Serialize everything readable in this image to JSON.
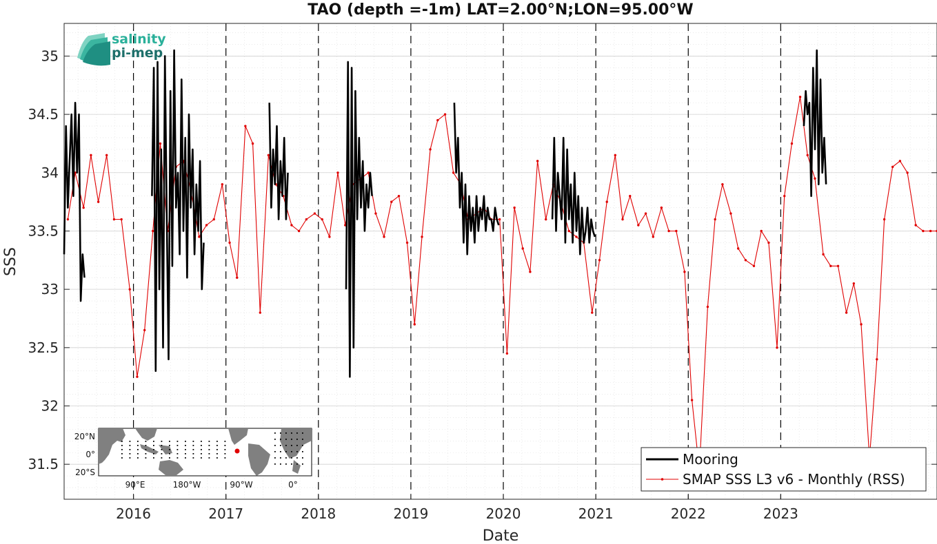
{
  "chart_data": {
    "type": "line",
    "title": "TAO (depth =-1m) LAT=2.00°N;LON=95.00°W",
    "xlabel": "Date",
    "ylabel": "SSS",
    "xlim": [
      2015.25,
      2024.69
    ],
    "ylim": [
      31.2,
      35.28
    ],
    "x_ticks": [
      2016,
      2017,
      2018,
      2019,
      2020,
      2021,
      2022,
      2023
    ],
    "x_tick_labels": [
      "2016",
      "2017",
      "2018",
      "2019",
      "2020",
      "2021",
      "2022",
      "2023"
    ],
    "y_ticks": [
      31.5,
      32,
      32.5,
      33,
      33.5,
      34,
      34.5,
      35
    ],
    "y_tick_labels": [
      "31.5",
      "32",
      "32.5",
      "33",
      "33.5",
      "34",
      "34.5",
      "35"
    ],
    "vertical_dashed_lines": [
      2016,
      2017,
      2018,
      2019,
      2020,
      2021,
      2022,
      2023
    ],
    "grid": "on (minor dotted)",
    "legend_location": "bottom-right",
    "series": [
      {
        "name": "Mooring",
        "color": "#000000",
        "style": "thick line",
        "x": [
          2015.25,
          2015.27,
          2015.29,
          2015.31,
          2015.33,
          2015.35,
          2015.37,
          2015.39,
          2015.41,
          2015.43,
          2015.45,
          2015.47,
          2016.2,
          2016.22,
          2016.24,
          2016.26,
          2016.28,
          2016.3,
          2016.32,
          2016.34,
          2016.36,
          2016.38,
          2016.4,
          2016.42,
          2016.44,
          2016.46,
          2016.48,
          2016.5,
          2016.52,
          2016.54,
          2016.56,
          2016.58,
          2016.6,
          2016.62,
          2016.64,
          2016.66,
          2016.68,
          2016.7,
          2016.72,
          2016.74,
          2016.76,
          2017.47,
          2017.49,
          2017.51,
          2017.53,
          2017.55,
          2017.57,
          2017.59,
          2017.61,
          2017.63,
          2017.65,
          2017.67,
          2018.3,
          2018.32,
          2018.34,
          2018.36,
          2018.38,
          2018.4,
          2018.42,
          2018.44,
          2018.46,
          2018.48,
          2018.5,
          2018.52,
          2018.54,
          2018.56,
          2018.58,
          2019.47,
          2019.49,
          2019.51,
          2019.53,
          2019.55,
          2019.57,
          2019.59,
          2019.61,
          2019.63,
          2019.65,
          2019.67,
          2019.69,
          2019.71,
          2019.73,
          2019.75,
          2019.77,
          2019.79,
          2019.81,
          2019.83,
          2019.85,
          2019.87,
          2019.89,
          2019.91,
          2019.93,
          2019.95,
          2020.53,
          2020.55,
          2020.57,
          2020.59,
          2020.61,
          2020.63,
          2020.65,
          2020.67,
          2020.69,
          2020.71,
          2020.73,
          2020.75,
          2020.77,
          2020.79,
          2020.81,
          2020.83,
          2020.85,
          2020.87,
          2020.89,
          2020.91,
          2020.93,
          2020.95,
          2020.97,
          2020.99,
          2023.25,
          2023.27,
          2023.29,
          2023.31,
          2023.33,
          2023.35,
          2023.37,
          2023.39,
          2023.41,
          2023.43,
          2023.45,
          2023.47,
          2023.49
        ],
        "values": [
          33.3,
          34.4,
          33.7,
          34.1,
          34.5,
          33.8,
          34.6,
          34.0,
          34.5,
          32.9,
          33.3,
          33.1,
          33.8,
          34.9,
          32.3,
          34.95,
          33.0,
          34.2,
          32.5,
          35.0,
          33.6,
          32.4,
          34.7,
          33.2,
          35.05,
          33.7,
          34.0,
          33.3,
          34.8,
          33.5,
          34.3,
          33.1,
          34.5,
          33.7,
          34.2,
          33.3,
          33.9,
          33.5,
          34.1,
          33.0,
          33.4,
          34.6,
          33.7,
          34.2,
          33.9,
          34.4,
          33.6,
          34.1,
          33.8,
          34.3,
          33.6,
          34.0,
          33.0,
          34.95,
          32.25,
          34.9,
          32.5,
          34.7,
          33.6,
          34.3,
          33.7,
          34.1,
          33.5,
          33.9,
          33.7,
          34.0,
          33.8,
          34.6,
          34.0,
          34.3,
          33.7,
          34.0,
          33.4,
          33.9,
          33.3,
          33.8,
          33.5,
          33.7,
          33.4,
          33.8,
          33.5,
          33.7,
          33.6,
          33.8,
          33.5,
          33.7,
          33.6,
          33.6,
          33.5,
          33.7,
          33.6,
          33.55,
          33.6,
          34.3,
          33.5,
          34.0,
          33.8,
          33.6,
          34.3,
          33.4,
          34.2,
          33.6,
          33.9,
          33.4,
          34.0,
          33.5,
          33.8,
          33.3,
          33.7,
          33.4,
          33.5,
          33.7,
          33.4,
          33.6,
          33.5,
          33.45,
          34.4,
          34.7,
          34.5,
          34.6,
          33.8,
          34.9,
          34.2,
          35.05,
          33.9,
          34.8,
          34.0,
          34.3,
          33.9
        ]
      },
      {
        "name": "SMAP SSS L3 v6 - Monthly (RSS)",
        "color": "#e00000",
        "style": "thin line with dot markers",
        "x": [
          2015.29,
          2015.37,
          2015.46,
          2015.54,
          2015.62,
          2015.71,
          2015.79,
          2015.87,
          2015.96,
          2016.04,
          2016.12,
          2016.21,
          2016.29,
          2016.37,
          2016.46,
          2016.54,
          2016.62,
          2016.71,
          2016.79,
          2016.87,
          2016.96,
          2017.04,
          2017.12,
          2017.21,
          2017.29,
          2017.37,
          2017.46,
          2017.54,
          2017.62,
          2017.71,
          2017.79,
          2017.87,
          2017.96,
          2018.04,
          2018.12,
          2018.21,
          2018.29,
          2018.37,
          2018.46,
          2018.54,
          2018.62,
          2018.71,
          2018.79,
          2018.87,
          2018.96,
          2019.04,
          2019.12,
          2019.21,
          2019.29,
          2019.37,
          2019.46,
          2019.54,
          2019.62,
          2019.71,
          2019.79,
          2019.87,
          2019.96,
          2020.04,
          2020.12,
          2020.21,
          2020.29,
          2020.37,
          2020.46,
          2020.54,
          2020.62,
          2020.71,
          2020.79,
          2020.87,
          2020.96,
          2021.04,
          2021.12,
          2021.21,
          2021.29,
          2021.37,
          2021.46,
          2021.54,
          2021.62,
          2021.71,
          2021.79,
          2021.87,
          2021.96,
          2022.04,
          2022.12,
          2022.21,
          2022.29,
          2022.37,
          2022.46,
          2022.54,
          2022.62,
          2022.71,
          2022.79,
          2022.87,
          2022.96,
          2023.04,
          2023.12,
          2023.21,
          2023.29,
          2023.37,
          2023.46,
          2023.54,
          2023.62,
          2023.71,
          2023.79,
          2023.87,
          2023.96,
          2024.04,
          2024.12,
          2024.21,
          2024.29,
          2024.37,
          2024.46,
          2024.54,
          2024.62,
          2024.69
        ],
        "values": [
          33.6,
          34.0,
          33.7,
          34.15,
          33.75,
          34.15,
          33.6,
          33.6,
          33.0,
          32.25,
          32.65,
          33.5,
          34.25,
          33.5,
          34.05,
          34.1,
          33.85,
          33.45,
          33.55,
          33.6,
          33.9,
          33.4,
          33.1,
          34.4,
          34.25,
          32.8,
          34.15,
          33.9,
          33.8,
          33.55,
          33.5,
          33.6,
          33.65,
          33.6,
          33.45,
          34.0,
          33.55,
          33.9,
          33.95,
          34.0,
          33.65,
          33.45,
          33.75,
          33.8,
          33.4,
          32.7,
          33.45,
          34.2,
          34.45,
          34.5,
          34.0,
          33.9,
          33.6,
          33.65,
          33.7,
          33.6,
          33.6,
          32.45,
          33.7,
          33.35,
          33.15,
          34.1,
          33.6,
          33.9,
          33.75,
          33.5,
          33.45,
          33.4,
          32.8,
          33.25,
          33.75,
          34.15,
          33.6,
          33.8,
          33.55,
          33.65,
          33.45,
          33.7,
          33.5,
          33.5,
          33.15,
          32.05,
          31.45,
          32.85,
          33.6,
          33.9,
          33.65,
          33.35,
          33.25,
          33.2,
          33.5,
          33.4,
          32.5,
          33.8,
          34.25,
          34.65,
          34.15,
          33.95,
          33.3,
          33.2,
          33.2,
          32.8,
          33.05,
          32.7,
          31.55,
          32.4,
          33.6,
          34.05,
          34.1,
          34.0,
          33.55,
          33.5,
          33.5,
          33.5
        ]
      }
    ]
  },
  "logo": {
    "line1": "salinity",
    "line2": "pi-mep",
    "color1": "#2ab09a",
    "color2": "#1d6f6a"
  },
  "inset_map": {
    "lat_labels": [
      "20°N",
      "0°",
      "20°S"
    ],
    "lon_labels": [
      "90°E",
      "180°W",
      "90°W",
      "0°"
    ],
    "land_color": "#808080",
    "ocean_color": "#ffffff",
    "station_color": "#e00000"
  }
}
